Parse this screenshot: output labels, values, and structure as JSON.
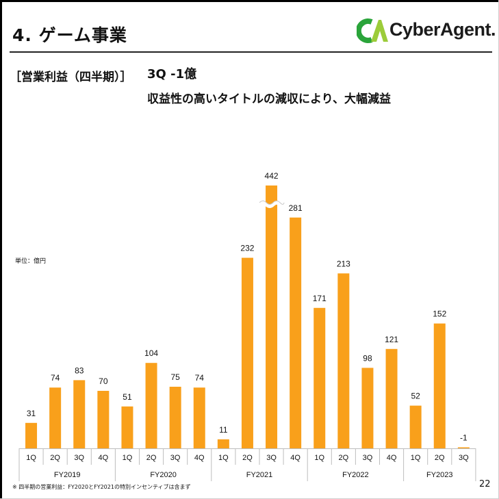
{
  "header": {
    "title": "4.  ゲーム事業",
    "logo_text": "CyberAgent."
  },
  "section": {
    "label": "［営業利益（四半期）］",
    "headline": "3Q  -1億",
    "subheadline": "収益性の高いタイトルの減収により、大幅減益"
  },
  "unit_note": "単位：億円",
  "footnote": "※ 四半期の営業利益：FY2020とFY2021の特別インセンティブは含まず",
  "page_number": "22",
  "colors": {
    "bar": "#f9a01b",
    "logo_green": "#2aa43a",
    "axis": "#bdbdbd"
  },
  "chart_data": {
    "type": "bar",
    "categories": [
      "FY2019 1Q",
      "FY2019 2Q",
      "FY2019 3Q",
      "FY2019 4Q",
      "FY2020 1Q",
      "FY2020 2Q",
      "FY2020 3Q",
      "FY2020 4Q",
      "FY2021 1Q",
      "FY2021 2Q",
      "FY2021 3Q",
      "FY2021 4Q",
      "FY2022 1Q",
      "FY2022 2Q",
      "FY2022 3Q",
      "FY2022 4Q",
      "FY2023 1Q",
      "FY2023 2Q",
      "FY2023 3Q"
    ],
    "quarter_labels": [
      "1Q",
      "2Q",
      "3Q",
      "4Q",
      "1Q",
      "2Q",
      "3Q",
      "4Q",
      "1Q",
      "2Q",
      "3Q",
      "4Q",
      "1Q",
      "2Q",
      "3Q",
      "4Q",
      "1Q",
      "2Q",
      "3Q"
    ],
    "year_groups": [
      {
        "label": "FY2019",
        "quarters": 4
      },
      {
        "label": "FY2020",
        "quarters": 4
      },
      {
        "label": "FY2021",
        "quarters": 4
      },
      {
        "label": "FY2022",
        "quarters": 4
      },
      {
        "label": "FY2023",
        "quarters": 3
      }
    ],
    "values": [
      31,
      74,
      83,
      70,
      51,
      104,
      75,
      74,
      11,
      232,
      442,
      281,
      171,
      213,
      98,
      121,
      52,
      152,
      -1
    ],
    "value_labels": [
      "31",
      "74",
      "83",
      "70",
      "51",
      "104",
      "75",
      "74",
      "11",
      "232",
      "442",
      "281",
      "171",
      "213",
      "98",
      "121",
      "52",
      "152",
      "-1"
    ],
    "axis_break": {
      "category": "FY2021 3Q",
      "shown_as_height_of": 320
    },
    "ylabel": "単位：億円",
    "grid": false,
    "legend": "none"
  }
}
